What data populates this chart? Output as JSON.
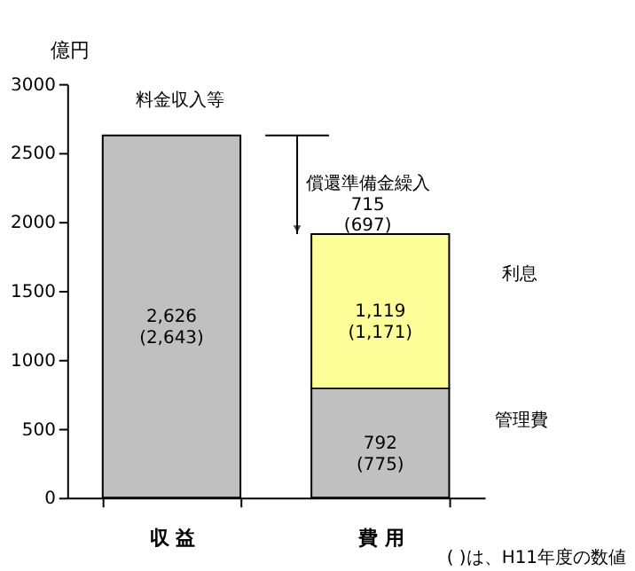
{
  "chart_data": {
    "type": "bar",
    "stacked": true,
    "ylabel": "億円",
    "categories": [
      "収 益",
      "費 用"
    ],
    "series": [
      {
        "color": "#c0c0c0",
        "values": [
          2626,
          792
        ],
        "value_labels": [
          "2,626\n(2,643)",
          "792\n(775)"
        ]
      },
      {
        "color": "#ffff99",
        "values": [
          null,
          1119
        ],
        "value_labels": [
          null,
          "1,119\n(1,171)"
        ]
      }
    ],
    "ylim": [
      0,
      3000
    ],
    "yticks": [
      0,
      500,
      1000,
      1500,
      2000,
      2500,
      3000
    ],
    "grid": false,
    "ref_lines": [
      {
        "axis": "y",
        "value": 2626,
        "color": "#000000"
      }
    ],
    "annotations": [
      "料金収入等",
      "償還準備金繰入\n715\n(697)",
      "利息",
      "管理費",
      "( )は、H11年度の数値"
    ]
  }
}
